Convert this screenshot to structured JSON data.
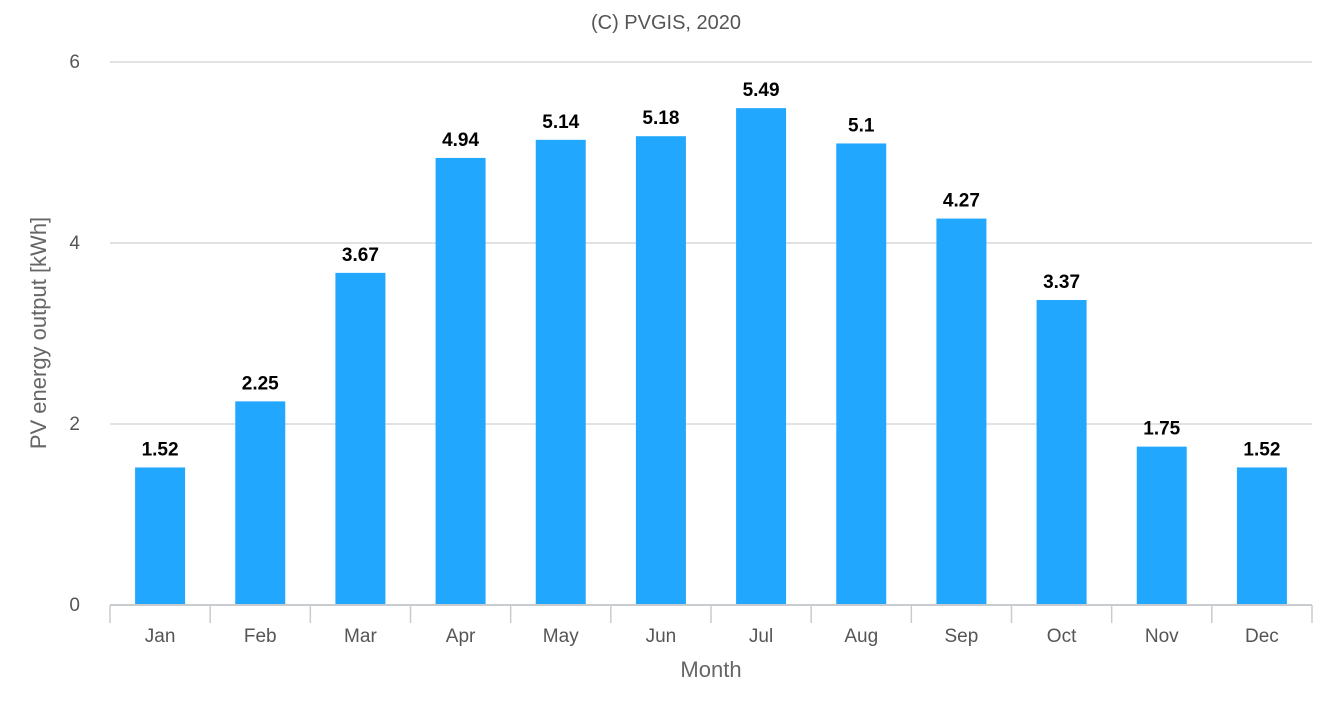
{
  "chart_data": {
    "type": "bar",
    "title": "(C) PVGIS, 2020",
    "xlabel": "Month",
    "ylabel": "PV energy output [kWh]",
    "categories": [
      "Jan",
      "Feb",
      "Mar",
      "Apr",
      "May",
      "Jun",
      "Jul",
      "Aug",
      "Sep",
      "Oct",
      "Nov",
      "Dec"
    ],
    "values": [
      1.52,
      2.25,
      3.67,
      4.94,
      5.14,
      5.18,
      5.49,
      5.1,
      4.27,
      3.37,
      1.75,
      1.52
    ],
    "data_labels": [
      "1.52",
      "2.25",
      "3.67",
      "4.94",
      "5.14",
      "5.18",
      "5.49",
      "5.1",
      "4.27",
      "3.37",
      "1.75",
      "1.52"
    ],
    "yticks": [
      0,
      2,
      4,
      6
    ],
    "ylim": [
      0,
      6
    ],
    "grid": true,
    "legend": "none",
    "bar_color": "#22a7ff"
  }
}
